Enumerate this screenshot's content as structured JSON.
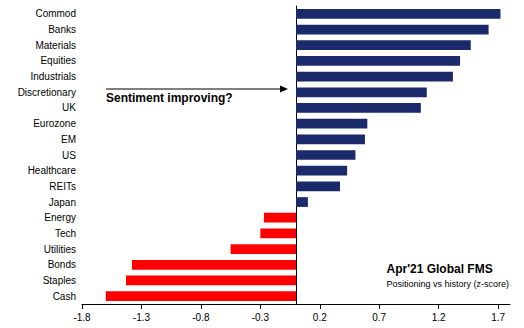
{
  "chart_data": {
    "type": "bar",
    "orientation": "horizontal",
    "title": "Apr'21 Global FMS",
    "subtitle": "Positioning vs history (z-score)",
    "annotations": [
      "Sentiment improving?"
    ],
    "categories": [
      "Commod",
      "Banks",
      "Materials",
      "Equities",
      "Industrials",
      "Discretionary",
      "UK",
      "Eurozone",
      "EM",
      "US",
      "Healthcare",
      "REITs",
      "Japan",
      "Energy",
      "Tech",
      "Utilities",
      "Bonds",
      "Staples",
      "Cash"
    ],
    "values": [
      1.72,
      1.62,
      1.47,
      1.38,
      1.32,
      1.1,
      1.05,
      0.6,
      0.58,
      0.5,
      0.43,
      0.37,
      0.1,
      -0.27,
      -0.3,
      -0.55,
      -1.38,
      -1.43,
      -1.6
    ],
    "colors": [
      "#1b2a6b",
      "#1b2a6b",
      "#1b2a6b",
      "#1b2a6b",
      "#1b2a6b",
      "#1b2a6b",
      "#1b2a6b",
      "#1b2a6b",
      "#1b2a6b",
      "#1b2a6b",
      "#1b2a6b",
      "#1b2a6b",
      "#1b2a6b",
      "#ff0000",
      "#ff0000",
      "#ff0000",
      "#ff0000",
      "#ff0000",
      "#ff0000"
    ],
    "xlim": [
      -1.8,
      1.8
    ],
    "xticks": [
      -1.8,
      -1.3,
      -0.8,
      -0.3,
      0.2,
      0.7,
      1.2,
      1.7
    ],
    "grid": false
  }
}
